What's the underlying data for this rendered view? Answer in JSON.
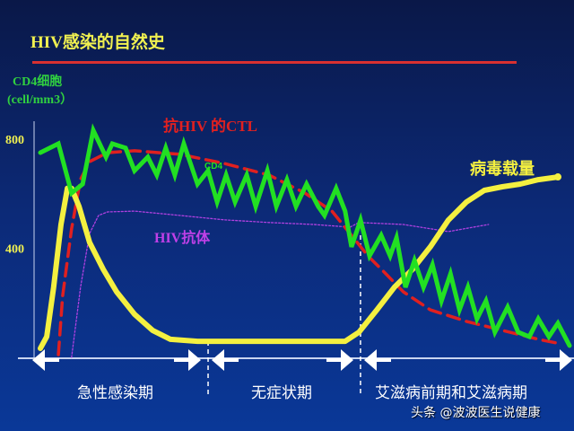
{
  "title": "HIV感染的自然史",
  "watermark": "头条 @波波医生说健康",
  "phases": [
    "急性感染期",
    "无症状期",
    "艾滋病前期和艾滋病期"
  ],
  "chart_data": {
    "type": "line",
    "title": "HIV感染的自然史",
    "ylabel": [
      "CD4细胞",
      "(cell/mm3）"
    ],
    "yticks": [
      400,
      800
    ],
    "ylim": [
      0,
      1000
    ],
    "xlim": [
      0,
      100
    ],
    "grid": false,
    "annotations": {
      "cd4": "CD4",
      "ctl": "抗HIV 的CTL",
      "antibody": "HIV抗体",
      "viral_load": "病毒载量"
    },
    "colors": {
      "cd4": "#22e022",
      "viral_load": "#f4f040",
      "ctl": "#e02020",
      "antibody": "#b040e0"
    },
    "series": [
      {
        "key": "cd4",
        "name": "CD4",
        "style": "solid",
        "x": [
          0,
          3.4,
          5.9,
          8,
          10,
          12.4,
          13.6,
          16.1,
          17.8,
          20.3,
          22,
          23.7,
          25.4,
          27.1,
          29.7,
          31.7,
          33.4,
          35.1,
          36.8,
          39,
          40.7,
          42.9,
          44.6,
          46.6,
          48.3,
          50.3,
          52.5,
          53.7,
          55.9,
          57.6,
          58.8,
          60.5,
          62.2,
          64.4,
          66.1,
          67.3,
          69,
          70.7,
          72.4,
          74.1,
          75.8,
          77.5,
          79.2,
          80.8,
          82.5,
          84.2,
          85.9,
          88.3,
          90.3,
          92.4,
          94.1,
          96.1,
          97.8,
          100
        ],
        "y": [
          750,
          783,
          602,
          635,
          832,
          734,
          783,
          767,
          684,
          734,
          668,
          767,
          668,
          783,
          635,
          684,
          569,
          668,
          569,
          668,
          553,
          684,
          553,
          651,
          553,
          635,
          553,
          520,
          619,
          536,
          405,
          503,
          372,
          447,
          372,
          438,
          257,
          355,
          257,
          339,
          207,
          306,
          174,
          257,
          141,
          207,
          92,
          184,
          92,
          76,
          141,
          76,
          125,
          43
        ]
      },
      {
        "key": "viral_load",
        "name": "病毒载量",
        "style": "solid",
        "x": [
          0,
          1.2,
          2.5,
          3.9,
          5.1,
          5.9,
          7.3,
          9.3,
          11.9,
          14.4,
          17.8,
          21.2,
          24.6,
          29.7,
          43.2,
          57.6,
          60.2,
          63.6,
          66.9,
          70.3,
          73.7,
          77.1,
          80.5,
          83.9,
          87.3,
          90.7,
          94.1,
          97.8
        ],
        "y": [
          33,
          76,
          257,
          487,
          619,
          619,
          553,
          421,
          322,
          240,
          158,
          99,
          66,
          59,
          59,
          59,
          92,
          174,
          257,
          322,
          405,
          503,
          569,
          612,
          625,
          635,
          651,
          661
        ]
      },
      {
        "key": "ctl",
        "name": "抗HIV 的CTL",
        "style": "dashed",
        "x": [
          3.4,
          4.2,
          5.9,
          7.6,
          9.3,
          12.7,
          17.8,
          26.3,
          34.7,
          43.2,
          50,
          55.1,
          58.5,
          61.9,
          65.3,
          68.6,
          73.7,
          80.5,
          87.3,
          94.1,
          97.5
        ],
        "y": [
          10,
          224,
          471,
          652,
          717,
          750,
          757,
          744,
          711,
          668,
          602,
          536,
          454,
          372,
          306,
          240,
          174,
          132,
          99,
          66,
          53
        ]
      },
      {
        "key": "antibody",
        "name": "HIV抗体",
        "style": "dotted",
        "x": [
          5.9,
          7.6,
          9.3,
          11,
          12.7,
          17.8,
          26.3,
          34.7,
          43.2,
          51.7,
          58.5,
          60.2,
          68.6,
          77.1,
          84.7
        ],
        "y": [
          0,
          257,
          454,
          520,
          533,
          536,
          520,
          504,
          494,
          487,
          477,
          494,
          487,
          461,
          487
        ]
      }
    ],
    "phase_boundaries": [
      31.7,
      60.5
    ]
  }
}
